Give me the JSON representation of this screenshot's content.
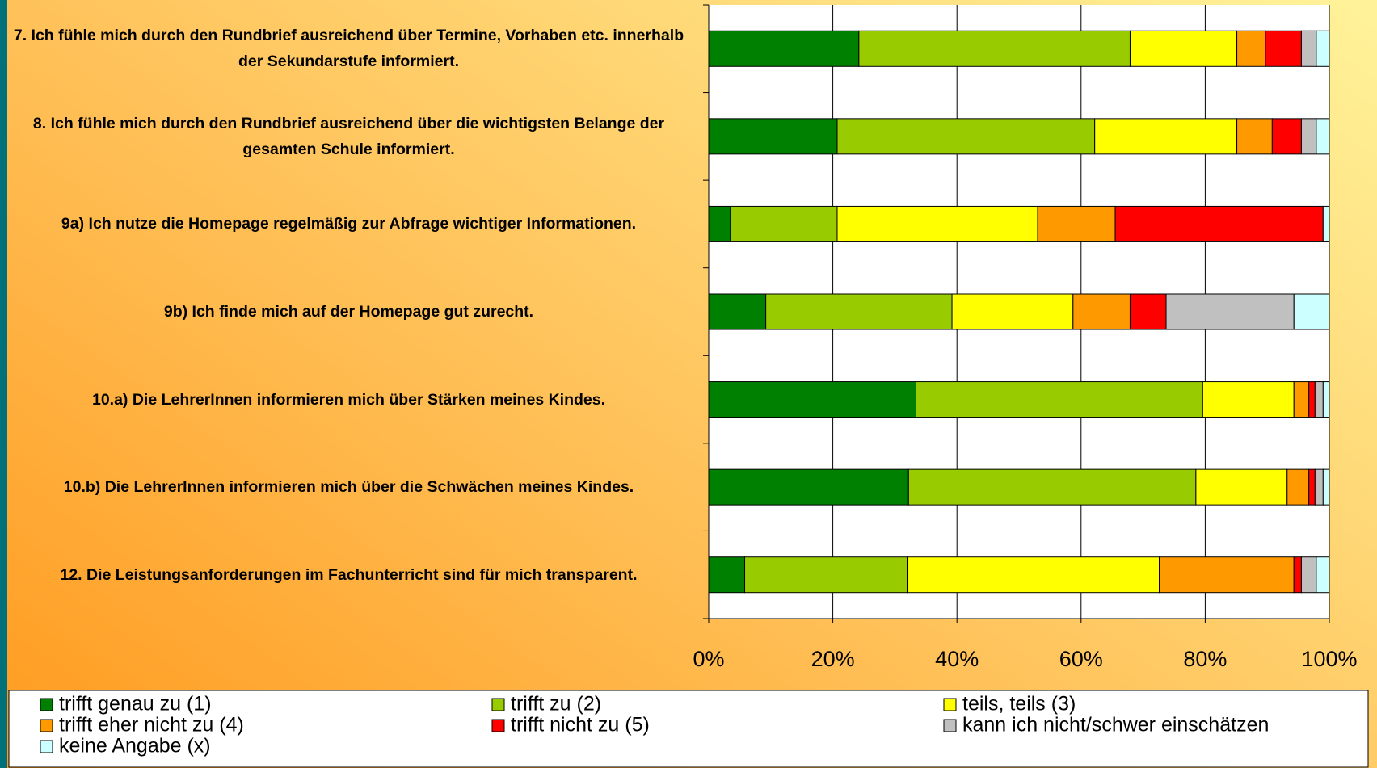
{
  "chart_data": {
    "type": "stacked-bar-horizontal",
    "categories": [
      "7. Ich fühle mich durch den Rundbrief  ausreichend über Termine, Vorhaben  etc. innerhalb der Sekundarstufe  informiert.",
      "8. Ich fühle mich durch den Rundbrief  ausreichend über die wichtigsten  Belange der gesamten Schule informiert.",
      "9a) Ich nutze die Homepage regelmäßig zur  Abfrage wichtiger Informationen.",
      "9b) Ich finde mich auf der Homepage gut  zurecht.",
      "10.a) Die LehrerInnen informieren mich über Stärken meines Kindes.",
      "10.b) Die LehrerInnen informieren mich über die Schwächen meines Kindes.",
      "12. Die Leistungsanforderungen im  Fachunterricht sind für mich transparent."
    ],
    "series": [
      {
        "name": "trifft genau zu (1)",
        "color": "#008000",
        "values": [
          24.2,
          20.7,
          3.5,
          9.2,
          33.4,
          32.2,
          5.8
        ]
      },
      {
        "name": "trifft zu (2)",
        "color": "#99cc00",
        "values": [
          43.7,
          41.5,
          17.2,
          30.0,
          46.2,
          46.3,
          26.3
        ]
      },
      {
        "name": "teils, teils (3)",
        "color": "#ffff00",
        "values": [
          17.2,
          22.9,
          32.3,
          19.5,
          14.7,
          14.7,
          40.5
        ]
      },
      {
        "name": "trifft eher nicht zu (4)",
        "color": "#ff9900",
        "values": [
          4.6,
          5.7,
          12.5,
          9.2,
          2.4,
          3.5,
          21.7
        ]
      },
      {
        "name": "trifft nicht zu (5)",
        "color": "#ff0000",
        "values": [
          5.8,
          4.7,
          33.5,
          5.8,
          1.0,
          1.0,
          1.2
        ]
      },
      {
        "name": "kann ich nicht/schwer einschätzen",
        "color": "#c0c0c0",
        "values": [
          2.4,
          2.4,
          0,
          20.6,
          1.3,
          1.3,
          2.4
        ]
      },
      {
        "name": "keine Angabe (x)",
        "color": "#ccffff",
        "values": [
          2.1,
          2.1,
          1.0,
          5.7,
          1.0,
          1.0,
          2.1
        ]
      }
    ],
    "xlim": [
      0,
      100
    ],
    "xticks": [
      {
        "value": 0,
        "label": "0%"
      },
      {
        "value": 20,
        "label": "20%"
      },
      {
        "value": 40,
        "label": "40%"
      },
      {
        "value": 60,
        "label": "60%"
      },
      {
        "value": 80,
        "label": "80%"
      },
      {
        "value": 100,
        "label": "100%"
      }
    ],
    "grid": true,
    "legend": "bottom"
  }
}
